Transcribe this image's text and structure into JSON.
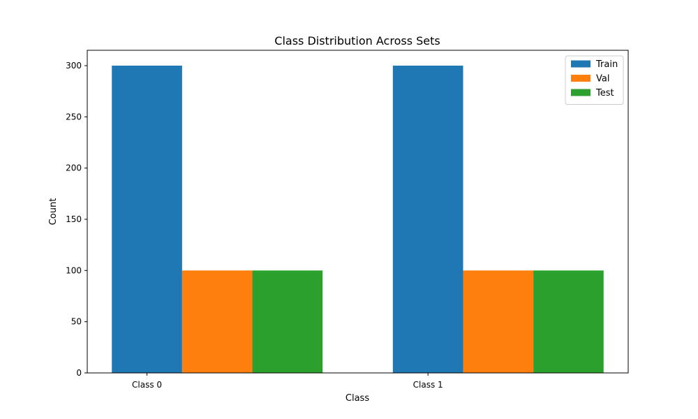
{
  "chart_data": {
    "type": "bar",
    "title": "Class Distribution Across Sets",
    "xlabel": "Class",
    "ylabel": "Count",
    "categories": [
      "Class 0",
      "Class 1"
    ],
    "series": [
      {
        "name": "Train",
        "values": [
          300,
          300
        ],
        "color": "#1f77b4"
      },
      {
        "name": "Val",
        "values": [
          100,
          100
        ],
        "color": "#ff7f0e"
      },
      {
        "name": "Test",
        "values": [
          100,
          100
        ],
        "color": "#2ca02c"
      }
    ],
    "ylim": [
      0,
      315
    ],
    "yticks": [
      0,
      50,
      100,
      150,
      200,
      250,
      300
    ],
    "legend_position": "top-right",
    "grid": false
  }
}
